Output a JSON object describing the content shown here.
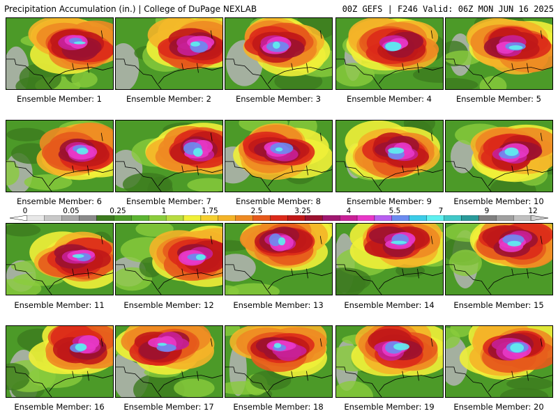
{
  "header": {
    "title": "Precipitation Accumulation (in.) | College of DuPage NEXLAB",
    "run_info": "00Z GEFS | F246 Valid: 06Z MON JUN 16 2025"
  },
  "colorbar": {
    "labels": [
      "0",
      "0.05",
      "0.25",
      "1",
      "1.75",
      "2.5",
      "3.25",
      "4",
      "5.5",
      "7",
      "9",
      "12"
    ],
    "colors": [
      "#e8e8e8",
      "#c8c8c8",
      "#a8a8a8",
      "#8a8a8a",
      "#3c7a1e",
      "#4c9a28",
      "#5cb432",
      "#8acc3c",
      "#b8dc40",
      "#f0f038",
      "#f6d030",
      "#f4b428",
      "#ee8a22",
      "#e65a1c",
      "#dc2a1a",
      "#c01818",
      "#9c1230",
      "#a01870",
      "#c82096",
      "#e838c8",
      "#b860f0",
      "#6c8cf0",
      "#3ccce8",
      "#5ef0f0",
      "#40c8c8",
      "#2a9a9a",
      "#808080",
      "#a0a0a0",
      "#c0c0c0"
    ]
  },
  "members": [
    {
      "label": "Ensemble Member: 1"
    },
    {
      "label": "Ensemble Member: 2"
    },
    {
      "label": "Ensemble Member: 3"
    },
    {
      "label": "Ensemble Member: 4"
    },
    {
      "label": "Ensemble Member: 5"
    },
    {
      "label": "Ensemble Member: 6"
    },
    {
      "label": "Ensemble Member: 7"
    },
    {
      "label": "Ensemble Member: 8"
    },
    {
      "label": "Ensemble Member: 9"
    },
    {
      "label": "Ensemble Member: 10"
    },
    {
      "label": "Ensemble Member: 11"
    },
    {
      "label": "Ensemble Member: 12"
    },
    {
      "label": "Ensemble Member: 13"
    },
    {
      "label": "Ensemble Member: 14"
    },
    {
      "label": "Ensemble Member: 15"
    },
    {
      "label": "Ensemble Member: 16"
    },
    {
      "label": "Ensemble Member: 17"
    },
    {
      "label": "Ensemble Member: 18"
    },
    {
      "label": "Ensemble Member: 19"
    },
    {
      "label": "Ensemble Member: 20"
    }
  ]
}
